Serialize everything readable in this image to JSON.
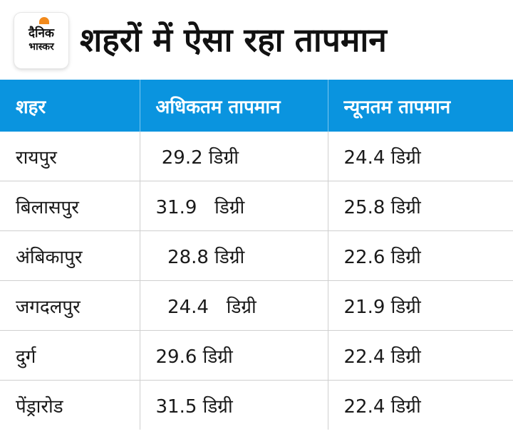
{
  "brand": {
    "logo_line1": "दैनिक",
    "logo_line2": "भास्कर",
    "accent_color": "#f28a1c"
  },
  "title": "शहरों में ऐसा रहा तापमान",
  "table": {
    "header_color": "#0a94df",
    "headers": [
      "शहर",
      "अधिकतम तापमान",
      "न्यूनतम तापमान"
    ],
    "rows": [
      [
        "रायपुर",
        " 29.2 डिग्री",
        "24.4 डिग्री"
      ],
      [
        "बिलासपुर",
        "31.9   डिग्री",
        "25.8 डिग्री"
      ],
      [
        "अंबिकापुर",
        "  28.8 डिग्री",
        "22.6 डिग्री"
      ],
      [
        "जगदलपुर",
        "  24.4   डिग्री",
        "21.9 डिग्री"
      ],
      [
        "दुर्ग",
        "29.6 डिग्री",
        "22.4 डिग्री"
      ],
      [
        "पेंड्रारोड",
        "31.5 डिग्री",
        "22.4 डिग्री"
      ]
    ]
  }
}
